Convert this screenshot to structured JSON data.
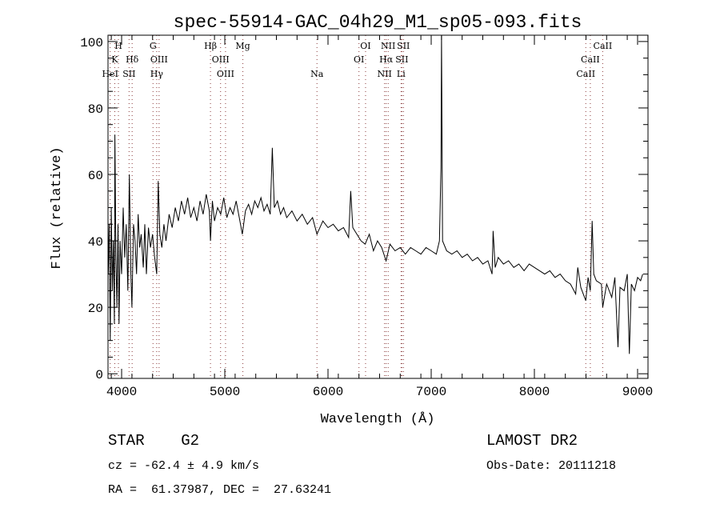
{
  "chart_data": {
    "type": "line",
    "title": "spec-55914-GAC_04h29_M1_sp05-093.fits",
    "xlabel": "Wavelength (Å)",
    "ylabel": "Flux (relative)",
    "xlim": [
      3868,
      9101
    ],
    "ylim": [
      -1.4,
      101.9
    ],
    "xticks": [
      4000,
      5000,
      6000,
      7000,
      8000,
      9000
    ],
    "xtick_labels": [
      "4000",
      "5000",
      "6000",
      "7000",
      "8000",
      "9000"
    ],
    "yticks": [
      0,
      20,
      40,
      60,
      80,
      100
    ],
    "ytick_labels": [
      "0",
      "20",
      "40",
      "60",
      "80",
      "100"
    ],
    "line_color": "#000000",
    "marker_color": "#8b3a3a",
    "spectrum": {
      "x": [
        3870,
        3880,
        3890,
        3900,
        3910,
        3920,
        3930,
        3935,
        3945,
        3955,
        3965,
        3975,
        3985,
        4000,
        4015,
        4030,
        4045,
        4060,
        4075,
        4090,
        4100,
        4115,
        4130,
        4145,
        4160,
        4175,
        4190,
        4210,
        4225,
        4240,
        4260,
        4280,
        4300,
        4320,
        4340,
        4355,
        4370,
        4390,
        4410,
        4430,
        4460,
        4490,
        4520,
        4550,
        4580,
        4610,
        4640,
        4670,
        4700,
        4730,
        4760,
        4790,
        4820,
        4850,
        4861,
        4880,
        4900,
        4930,
        4960,
        4990,
        5020,
        5050,
        5080,
        5110,
        5140,
        5170,
        5200,
        5230,
        5260,
        5290,
        5320,
        5350,
        5380,
        5410,
        5440,
        5460,
        5480,
        5510,
        5540,
        5570,
        5600,
        5650,
        5700,
        5750,
        5800,
        5850,
        5893,
        5950,
        6000,
        6050,
        6100,
        6150,
        6200,
        6220,
        6240,
        6280,
        6320,
        6360,
        6400,
        6440,
        6480,
        6520,
        6563,
        6600,
        6650,
        6700,
        6750,
        6800,
        6850,
        6900,
        6950,
        7000,
        7050,
        7080,
        7095,
        7100,
        7110,
        7150,
        7200,
        7250,
        7300,
        7350,
        7400,
        7450,
        7500,
        7550,
        7590,
        7600,
        7620,
        7650,
        7700,
        7750,
        7800,
        7850,
        7900,
        7950,
        8000,
        8050,
        8100,
        8150,
        8200,
        8250,
        8300,
        8350,
        8400,
        8420,
        8450,
        8498,
        8520,
        8542,
        8560,
        8575,
        8600,
        8650,
        8662,
        8700,
        8750,
        8780,
        8810,
        8830,
        8870,
        8900,
        8920,
        8940,
        8970,
        9000,
        9030,
        9050
      ],
      "y": [
        30,
        45,
        10,
        50,
        25,
        40,
        15,
        72,
        35,
        20,
        45,
        15,
        40,
        30,
        50,
        35,
        45,
        25,
        60,
        30,
        20,
        45,
        40,
        30,
        48,
        38,
        42,
        32,
        45,
        30,
        44,
        38,
        42,
        35,
        30,
        58,
        42,
        38,
        45,
        40,
        48,
        44,
        50,
        46,
        52,
        48,
        53,
        47,
        50,
        46,
        52,
        48,
        54,
        49,
        40,
        52,
        46,
        50,
        48,
        53,
        47,
        50,
        48,
        52,
        47,
        42,
        49,
        51,
        48,
        52,
        50,
        53,
        49,
        51,
        48,
        68,
        50,
        52,
        48,
        50,
        47,
        49,
        46,
        48,
        45,
        47,
        42,
        46,
        44,
        45,
        43,
        44,
        41,
        55,
        44,
        42,
        40,
        39,
        42,
        37,
        40,
        38,
        34,
        39,
        37,
        38,
        36,
        38,
        37,
        36,
        38,
        37,
        36,
        40,
        62,
        102,
        40,
        37,
        36,
        37,
        35,
        36,
        34,
        35,
        33,
        34,
        30,
        43,
        32,
        35,
        33,
        34,
        32,
        33,
        31,
        33,
        32,
        31,
        30,
        31,
        29,
        30,
        28,
        27,
        24,
        32,
        26,
        22,
        29,
        25,
        46,
        30,
        28,
        27,
        20,
        27,
        23,
        29,
        8,
        26,
        25,
        30,
        6,
        27,
        25,
        29,
        28,
        30
      ]
    },
    "line_markers": [
      {
        "label": "H",
        "wave": 3969,
        "row": 0
      },
      {
        "label": "K",
        "wave": 3934,
        "row": 1
      },
      {
        "label": "HeI",
        "wave": 3889,
        "row": 2
      },
      {
        "label": "Hδ",
        "wave": 4102,
        "row": 1
      },
      {
        "label": "SII",
        "wave": 4072,
        "row": 2
      },
      {
        "label": "G",
        "wave": 4304,
        "row": 0
      },
      {
        "label": "OIII",
        "wave": 4363,
        "row": 1
      },
      {
        "label": "Hγ",
        "wave": 4340,
        "row": 2
      },
      {
        "label": "Hβ",
        "wave": 4861,
        "row": 0
      },
      {
        "label": "OIII",
        "wave": 4959,
        "row": 1
      },
      {
        "label": "OIII",
        "wave": 5007,
        "row": 2
      },
      {
        "label": "Mg",
        "wave": 5175,
        "row": 0
      },
      {
        "label": "Na",
        "wave": 5893,
        "row": 2
      },
      {
        "label": "OI",
        "wave": 6300,
        "row": 1
      },
      {
        "label": "OI",
        "wave": 6364,
        "row": 0
      },
      {
        "label": "NII",
        "wave": 6548,
        "row": 2
      },
      {
        "label": "Hα",
        "wave": 6563,
        "row": 1
      },
      {
        "label": "NII",
        "wave": 6583,
        "row": 0
      },
      {
        "label": "Li",
        "wave": 6708,
        "row": 2
      },
      {
        "label": "SII",
        "wave": 6716,
        "row": 1
      },
      {
        "label": "SII",
        "wave": 6731,
        "row": 0
      },
      {
        "label": "CaII",
        "wave": 8498,
        "row": 2
      },
      {
        "label": "CaII",
        "wave": 8542,
        "row": 1
      },
      {
        "label": "CaII",
        "wave": 8662,
        "row": 0
      }
    ]
  },
  "info": {
    "class": "STAR    G2",
    "redshift": "cz = -62.4 ± 4.9 km/s",
    "coords": "RA =  61.37987, DEC =  27.63241",
    "survey": "LAMOST DR2",
    "obs_date": "Obs-Date: 20111218"
  }
}
